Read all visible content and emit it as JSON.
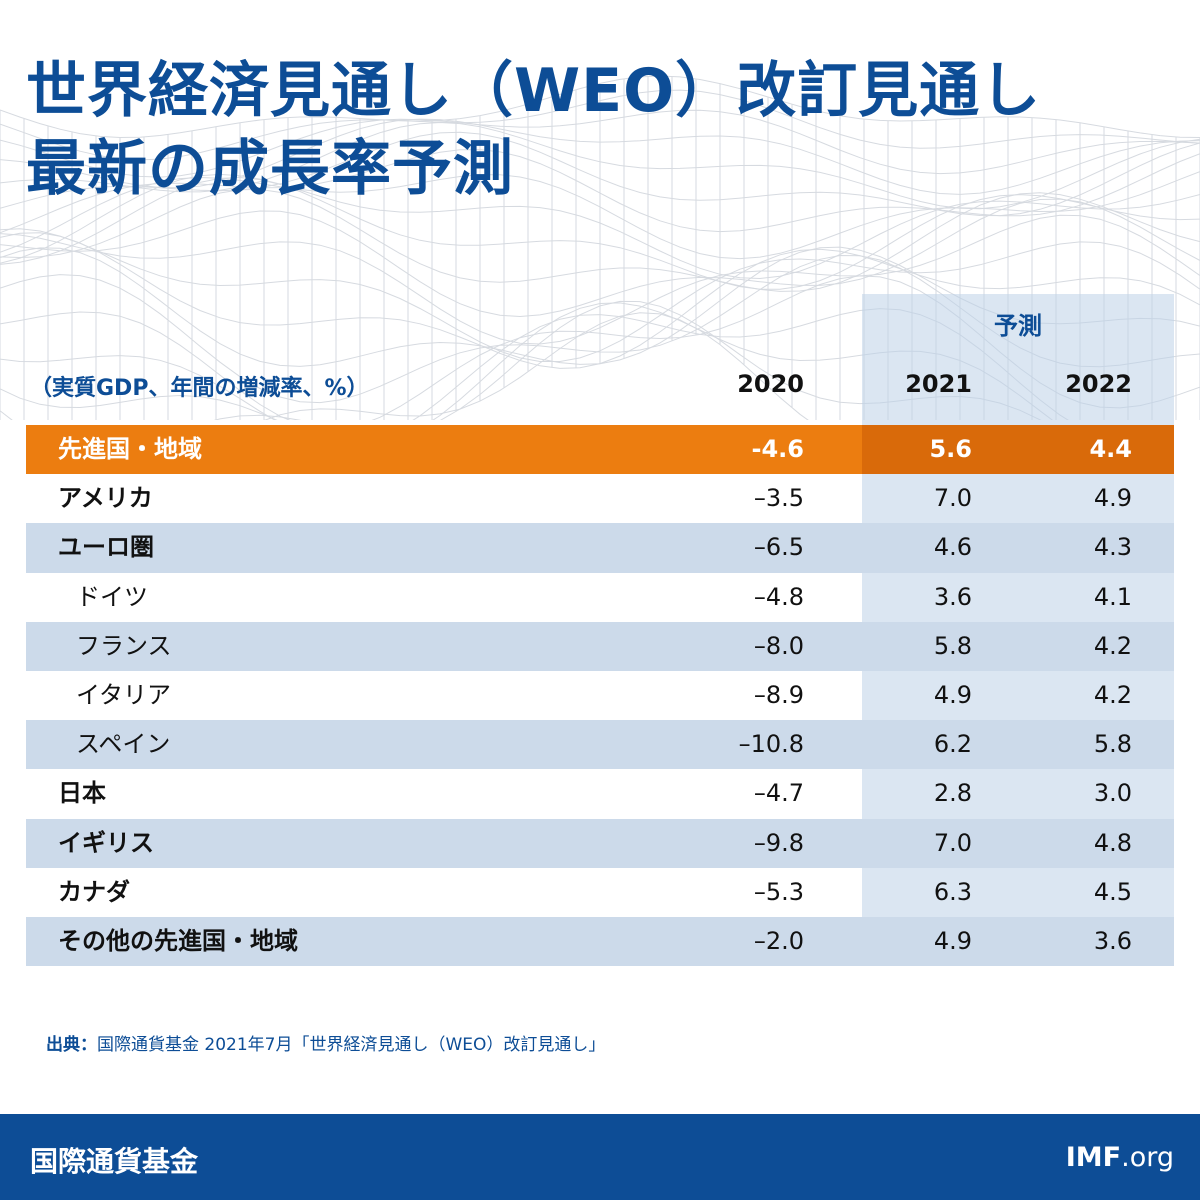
{
  "title_line1": "世界経済見通し（WEO）改訂見通し",
  "title_line2": "最新の成長率予測",
  "forecast_label": "予測",
  "unit_label": "（実質GDP、年間の増減率、%）",
  "years": [
    "2020",
    "2021",
    "2022"
  ],
  "rows": [
    {
      "name": "先進国・地域",
      "v2020": "-4.6",
      "v2021": "5.6",
      "v2022": "4.4"
    },
    {
      "name": "アメリカ",
      "v2020": "–3.5",
      "v2021": "7.0",
      "v2022": "4.9"
    },
    {
      "name": "ユーロ圏",
      "v2020": "–6.5",
      "v2021": "4.6",
      "v2022": "4.3"
    },
    {
      "name": "ドイツ",
      "v2020": "–4.8",
      "v2021": "3.6",
      "v2022": "4.1"
    },
    {
      "name": "フランス",
      "v2020": "–8.0",
      "v2021": "5.8",
      "v2022": "4.2"
    },
    {
      "name": "イタリア",
      "v2020": "–8.9",
      "v2021": "4.9",
      "v2022": "4.2"
    },
    {
      "name": "スペイン",
      "v2020": "–10.8",
      "v2021": "6.2",
      "v2022": "5.8"
    },
    {
      "name": "日本",
      "v2020": "–4.7",
      "v2021": "2.8",
      "v2022": "3.0"
    },
    {
      "name": "イギリス",
      "v2020": "–9.8",
      "v2021": "7.0",
      "v2022": "4.8"
    },
    {
      "name": "カナダ",
      "v2020": "–5.3",
      "v2021": "6.3",
      "v2022": "4.5"
    },
    {
      "name": "その他の先進国・地域",
      "v2020": "–2.0",
      "v2021": "4.9",
      "v2022": "3.6"
    }
  ],
  "source_label": "出典：",
  "source_text": "国際通貨基金 2021年7月「世界経済見通し（WEO）改訂見通し」",
  "footer": {
    "org_name": "国際通貨基金",
    "url_bold": "IMF",
    "url_rest": ".org"
  },
  "colors": {
    "brand_blue": "#0d4d96",
    "highlight_orange": "#ec7d10",
    "row_shade": "#ccdaea"
  }
}
